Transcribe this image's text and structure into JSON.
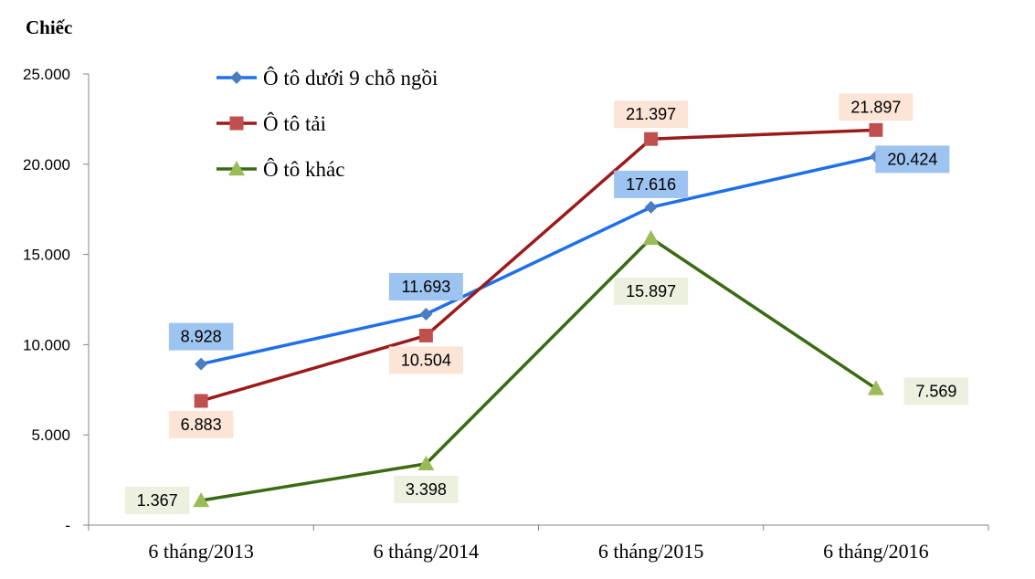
{
  "chart_data": {
    "type": "line",
    "ylabel": "Chiếc",
    "xlabel": "",
    "title": "",
    "categories": [
      "6 tháng/2013",
      "6 tháng/2014",
      "6 tháng/2015",
      "6 tháng/2016"
    ],
    "ylim": [
      0,
      25000
    ],
    "y_ticks": [
      {
        "value": 0,
        "label": "-"
      },
      {
        "value": 5000,
        "label": "5.000"
      },
      {
        "value": 10000,
        "label": "10.000"
      },
      {
        "value": 15000,
        "label": "15.000"
      },
      {
        "value": 20000,
        "label": "20.000"
      },
      {
        "value": 25000,
        "label": "25.000"
      }
    ],
    "grid": false,
    "legend_position": "top-left",
    "series": [
      {
        "name": "Ô tô dưới 9 chỗ ngồi",
        "values": [
          8928,
          11693,
          17616,
          20424
        ],
        "labels": [
          "8.928",
          "11.693",
          "17.616",
          "20.424"
        ],
        "color": "#1F6FEB",
        "marker": "diamond",
        "marker_color": "#4A7EC0",
        "label_bg": "#9DC3F0"
      },
      {
        "name": "Ô tô tải",
        "values": [
          6883,
          10504,
          21397,
          21897
        ],
        "labels": [
          "6.883",
          "10.504",
          "21.397",
          "21.897"
        ],
        "color": "#9B1B1B",
        "marker": "square",
        "marker_color": "#C0504D",
        "label_bg": "#FCE4D6"
      },
      {
        "name": "Ô tô khác",
        "values": [
          1367,
          3398,
          15897,
          7569
        ],
        "labels": [
          "1.367",
          "3.398",
          "15.897",
          "7.569"
        ],
        "color": "#3A6B12",
        "marker": "triangle",
        "marker_color": "#9BBB59",
        "label_bg": "#EBF1DE"
      }
    ]
  }
}
